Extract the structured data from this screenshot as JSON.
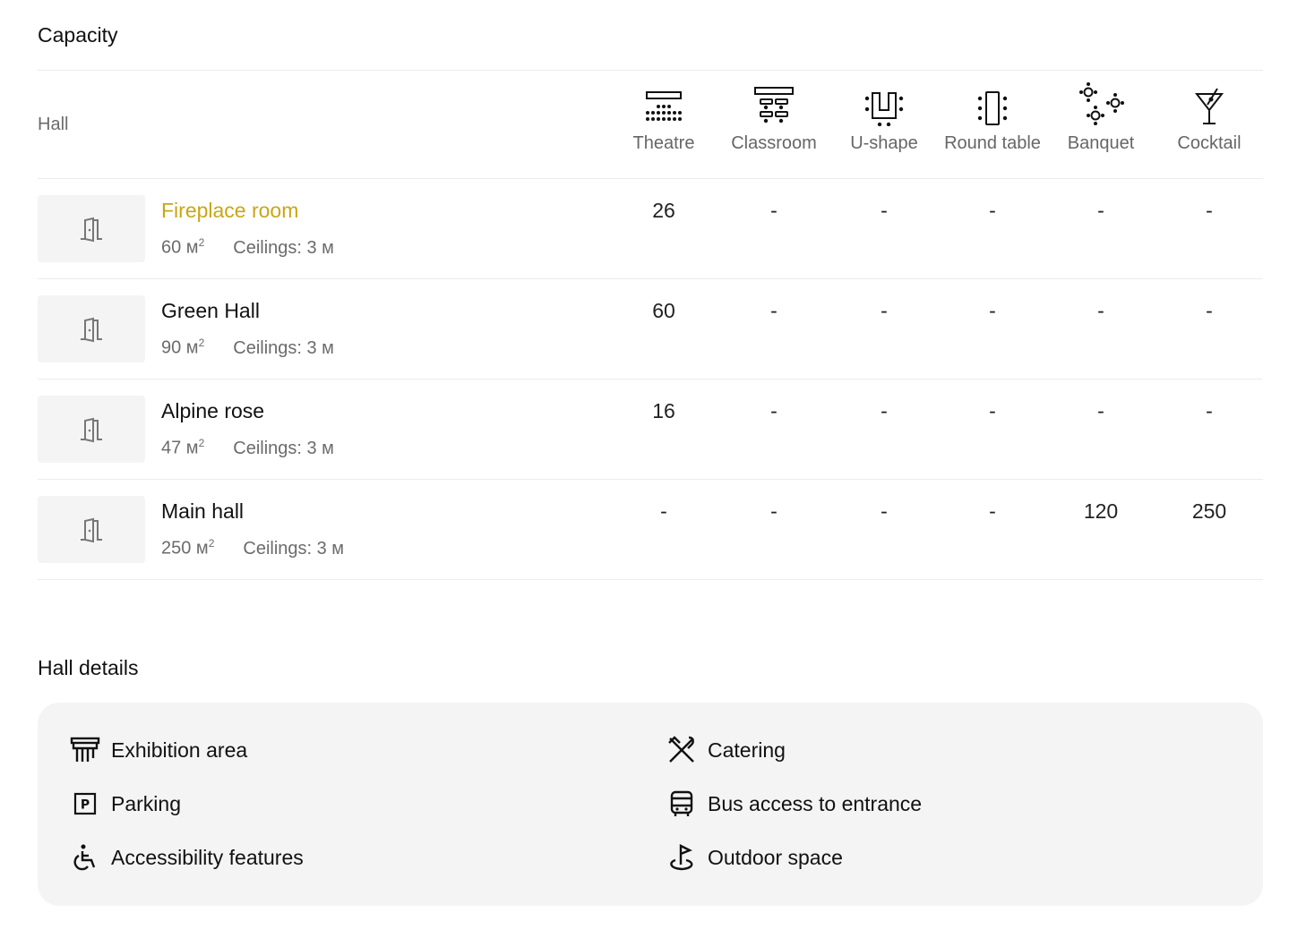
{
  "capacity": {
    "title": "Capacity",
    "hall_header": "Hall",
    "columns": [
      {
        "label": "Theatre",
        "icon": "theatre-layout-icon"
      },
      {
        "label": "Classroom",
        "icon": "classroom-layout-icon"
      },
      {
        "label": "U-shape",
        "icon": "u-shape-layout-icon"
      },
      {
        "label": "Round table",
        "icon": "round-table-layout-icon"
      },
      {
        "label": "Banquet",
        "icon": "banquet-layout-icon"
      },
      {
        "label": "Cocktail",
        "icon": "cocktail-icon"
      }
    ],
    "rows": [
      {
        "name": "Fireplace room",
        "area": "60 м",
        "area_sup": "2",
        "ceilings": "Ceilings: 3 м",
        "active": true,
        "values": [
          "26",
          "-",
          "-",
          "-",
          "-",
          "-"
        ]
      },
      {
        "name": "Green Hall",
        "area": "90 м",
        "area_sup": "2",
        "ceilings": "Ceilings: 3 м",
        "active": false,
        "values": [
          "60",
          "-",
          "-",
          "-",
          "-",
          "-"
        ]
      },
      {
        "name": "Alpine rose",
        "area": "47 м",
        "area_sup": "2",
        "ceilings": "Ceilings: 3 м",
        "active": false,
        "values": [
          "16",
          "-",
          "-",
          "-",
          "-",
          "-"
        ]
      },
      {
        "name": "Main hall",
        "area": "250 м",
        "area_sup": "2",
        "ceilings": "Ceilings: 3 м",
        "active": false,
        "values": [
          "-",
          "-",
          "-",
          "-",
          "120",
          "250"
        ]
      }
    ],
    "active_color": "#c9a615"
  },
  "details": {
    "title": "Hall details",
    "features": [
      {
        "label": "Exhibition area",
        "icon": "exhibition-icon"
      },
      {
        "label": "Catering",
        "icon": "catering-icon"
      },
      {
        "label": "Parking",
        "icon": "parking-icon"
      },
      {
        "label": "Bus access to entrance",
        "icon": "bus-icon"
      },
      {
        "label": "Accessibility features",
        "icon": "accessibility-icon"
      },
      {
        "label": "Outdoor space",
        "icon": "outdoor-icon"
      }
    ]
  }
}
